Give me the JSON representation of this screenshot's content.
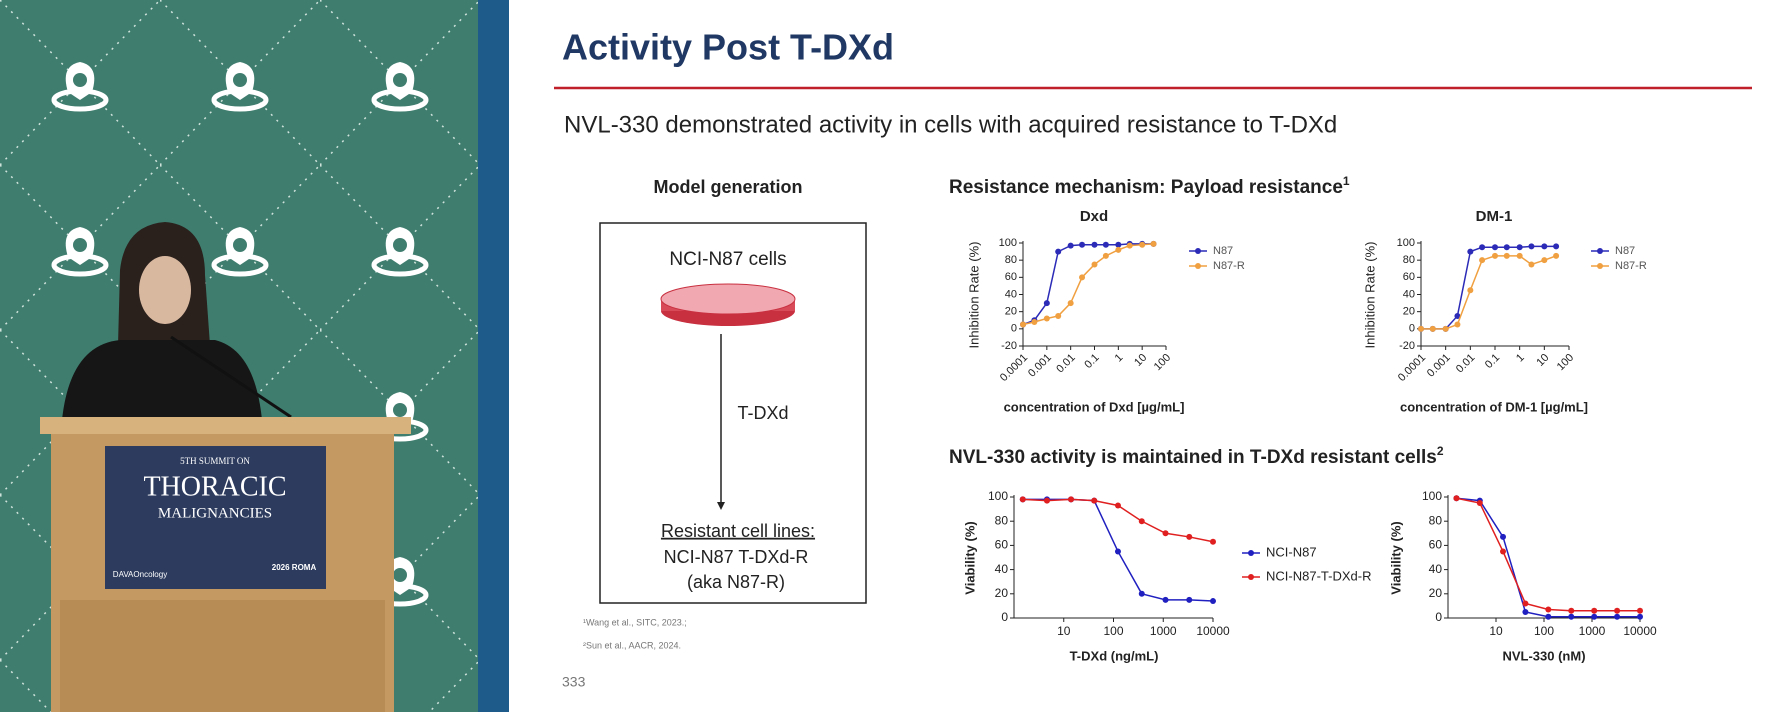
{
  "video": {
    "podium": [
      "5TH SUMMIT ON",
      "THORACIC",
      "MALIGNANCIES",
      "DAVAOncology",
      "2026 ROMA"
    ]
  },
  "slide": {
    "title": "Activity Post T-DXd",
    "subtitle": "NVL-330 demonstrated activity in cells with acquired resistance to T-DXd",
    "model": {
      "heading": "Model generation",
      "start": "NCI-N87 cells",
      "treatment": "T-DXd",
      "result": [
        "Resistant cell lines:",
        "NCI-N87 T-DXd-R",
        "(aka N87-R)"
      ]
    },
    "section1": {
      "text": "Resistance mechanism: Payload resistance",
      "ref": "1"
    },
    "section2": {
      "text": "NVL-330 activity is maintained in T-DXd resistant cells",
      "ref": "2"
    },
    "footnotes": [
      "¹Wang et al., SITC, 2023.;",
      "²Sun et al., AACR, 2024."
    ],
    "page": "333"
  },
  "chart_data": [
    {
      "type": "line",
      "title": "Dxd",
      "xlabel": "concentration of Dxd [µg/mL]",
      "ylabel": "Inhibition Rate (%)",
      "xscale": "log",
      "legend": "right",
      "x": [
        0.0001,
        0.0003,
        0.001,
        0.003,
        0.01,
        0.03,
        0.1,
        0.3,
        1,
        3,
        10,
        30
      ],
      "series": [
        {
          "name": "N87",
          "color": "#2b2bb8",
          "values": [
            5,
            10,
            30,
            90,
            97,
            98,
            98,
            98,
            98,
            99,
            99,
            99
          ]
        },
        {
          "name": "N87-R",
          "color": "#f0a040",
          "values": [
            5,
            8,
            12,
            15,
            30,
            60,
            75,
            85,
            92,
            97,
            98,
            99
          ]
        }
      ],
      "xlim": [
        0.0001,
        100
      ],
      "xticks": [
        0.0001,
        0.001,
        0.01,
        0.1,
        1,
        10,
        100
      ],
      "ylim": [
        -20,
        100
      ],
      "yticks": [
        -20,
        0,
        20,
        40,
        60,
        80,
        100
      ]
    },
    {
      "type": "line",
      "title": "DM-1",
      "xlabel": "concentration of DM-1 [µg/mL]",
      "ylabel": "Inhibition Rate (%)",
      "xscale": "log",
      "legend": "right",
      "x": [
        0.0001,
        0.0003,
        0.001,
        0.003,
        0.01,
        0.03,
        0.1,
        0.3,
        1,
        3,
        10,
        30
      ],
      "series": [
        {
          "name": "N87",
          "color": "#2b2bb8",
          "values": [
            0,
            0,
            0,
            15,
            90,
            95,
            95,
            95,
            95,
            96,
            96,
            96
          ]
        },
        {
          "name": "N87-R",
          "color": "#f0a040",
          "values": [
            0,
            0,
            0,
            5,
            45,
            80,
            85,
            85,
            85,
            75,
            80,
            85
          ]
        }
      ],
      "xlim": [
        0.0001,
        100
      ],
      "xticks": [
        0.0001,
        0.001,
        0.01,
        0.1,
        1,
        10,
        100
      ],
      "ylim": [
        -20,
        100
      ],
      "yticks": [
        -20,
        0,
        20,
        40,
        60,
        80,
        100
      ]
    },
    {
      "type": "line",
      "xlabel": "T-DXd (ng/mL)",
      "ylabel": "Viability (%)",
      "xscale": "log",
      "legend": "right",
      "x": [
        1.5,
        4.6,
        14,
        41,
        123,
        370,
        1111,
        3333,
        10000
      ],
      "series": [
        {
          "name": "NCI-N87",
          "color": "#2020c0",
          "values": [
            98,
            98,
            98,
            97,
            55,
            20,
            15,
            15,
            14
          ]
        },
        {
          "name": "NCI-N87-T-DXd-R",
          "color": "#e02020",
          "values": [
            98,
            97,
            98,
            97,
            93,
            80,
            70,
            67,
            63
          ]
        }
      ],
      "xlim": [
        1,
        10000
      ],
      "xticks": [
        10,
        100,
        1000,
        10000
      ],
      "ylim": [
        0,
        100
      ],
      "yticks": [
        0,
        20,
        40,
        60,
        80,
        100
      ]
    },
    {
      "type": "line",
      "xlabel": "NVL-330 (nM)",
      "ylabel": "Viability (%)",
      "xscale": "log",
      "x": [
        1.5,
        4.6,
        14,
        41,
        123,
        370,
        1111,
        3333,
        10000
      ],
      "series": [
        {
          "color": "#2020c0",
          "values": [
            99,
            97,
            67,
            5,
            1,
            1,
            1,
            1,
            1
          ]
        },
        {
          "color": "#e02020",
          "values": [
            99,
            95,
            55,
            12,
            7,
            6,
            6,
            6,
            6
          ]
        }
      ],
      "xlim": [
        1,
        10000
      ],
      "xticks": [
        10,
        100,
        1000,
        10000
      ],
      "ylim": [
        0,
        100
      ],
      "yticks": [
        0,
        20,
        40,
        60,
        80,
        100
      ]
    }
  ]
}
